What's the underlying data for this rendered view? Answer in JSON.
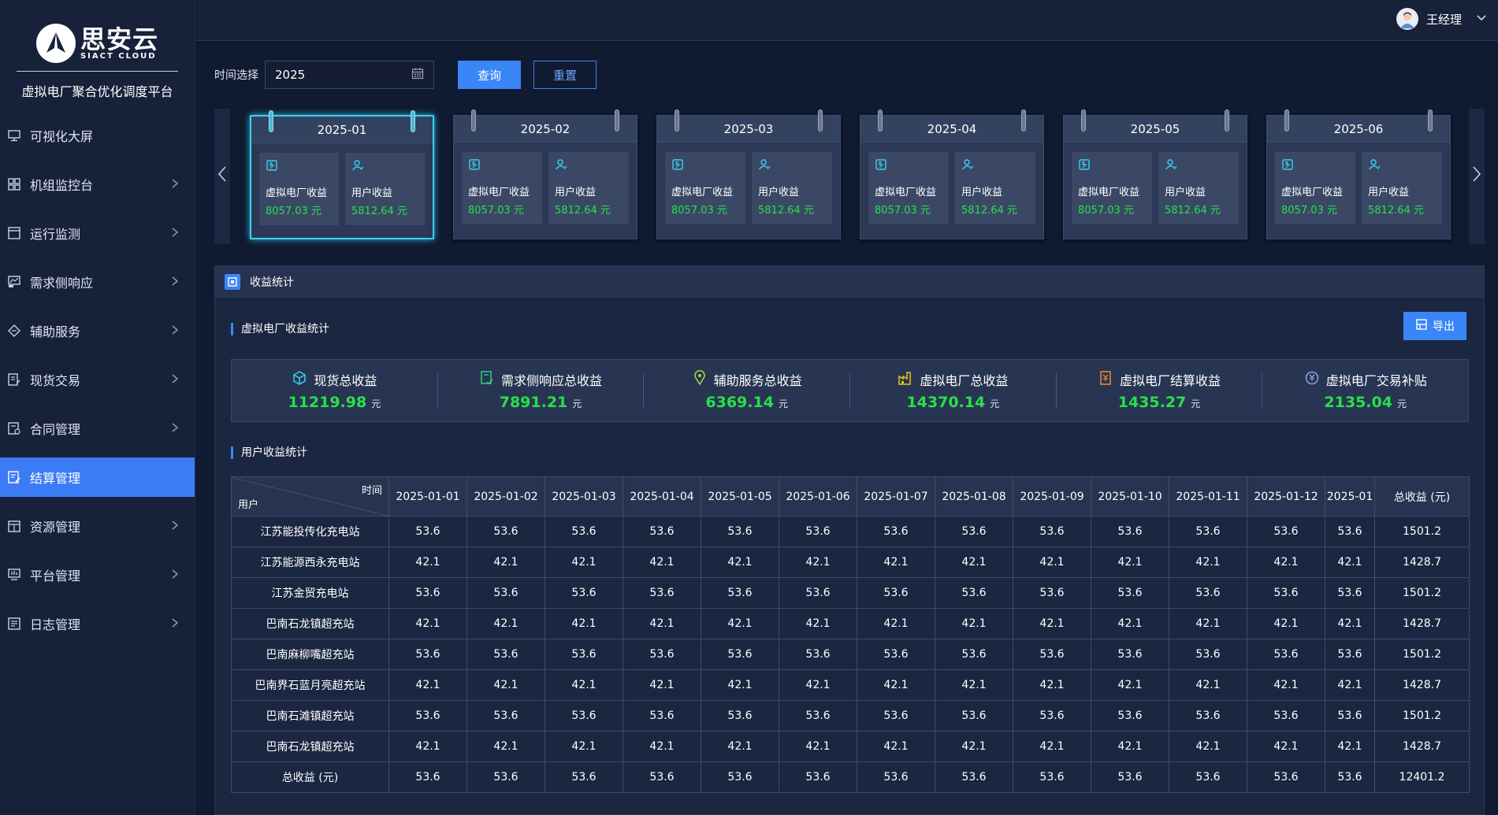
{
  "brand": {
    "logo_cn": "思安云",
    "logo_en": "SIACT CLOUD",
    "platform_name": "虚拟电厂聚合优化调度平台"
  },
  "sidebar": {
    "items": [
      {
        "label": "可视化大屏",
        "icon": "monitor-icon",
        "has_arrow": false
      },
      {
        "label": "机组监控台",
        "icon": "grid-icon",
        "has_arrow": true
      },
      {
        "label": "运行监测",
        "icon": "window-icon",
        "has_arrow": true
      },
      {
        "label": "需求侧响应",
        "icon": "demand-icon",
        "has_arrow": true
      },
      {
        "label": "辅助服务",
        "icon": "diamond-icon",
        "has_arrow": true
      },
      {
        "label": "现货交易",
        "icon": "document-edit-icon",
        "has_arrow": true
      },
      {
        "label": "合同管理",
        "icon": "contract-icon",
        "has_arrow": true
      },
      {
        "label": "结算管理",
        "icon": "settlement-icon",
        "has_arrow": false,
        "active": true
      },
      {
        "label": "资源管理",
        "icon": "resource-icon",
        "has_arrow": true
      },
      {
        "label": "平台管理",
        "icon": "platform-icon",
        "has_arrow": true
      },
      {
        "label": "日志管理",
        "icon": "log-icon",
        "has_arrow": true
      }
    ]
  },
  "topbar": {
    "user_name": "王经理"
  },
  "filter": {
    "label": "时间选择",
    "value": "2025",
    "query_label": "查询",
    "reset_label": "重置"
  },
  "months": [
    {
      "month": "2025-01",
      "vpp_label": "虚拟电厂收益",
      "vpp_value": "8057.03 元",
      "user_label": "用户收益",
      "user_value": "5812.64 元",
      "selected": true
    },
    {
      "month": "2025-02",
      "vpp_label": "虚拟电厂收益",
      "vpp_value": "8057.03 元",
      "user_label": "用户收益",
      "user_value": "5812.64 元"
    },
    {
      "month": "2025-03",
      "vpp_label": "虚拟电厂收益",
      "vpp_value": "8057.03 元",
      "user_label": "用户收益",
      "user_value": "5812.64 元"
    },
    {
      "month": "2025-04",
      "vpp_label": "虚拟电厂收益",
      "vpp_value": "8057.03 元",
      "user_label": "用户收益",
      "user_value": "5812.64 元"
    },
    {
      "month": "2025-05",
      "vpp_label": "虚拟电厂收益",
      "vpp_value": "8057.03 元",
      "user_label": "用户收益",
      "user_value": "5812.64 元"
    },
    {
      "month": "2025-06",
      "vpp_label": "虚拟电厂收益",
      "vpp_value": "8057.03 元",
      "user_label": "用户收益",
      "user_value": "5812.64 元"
    }
  ],
  "panel": {
    "title": "收益统计",
    "vpp_section": "虚拟电厂收益统计",
    "export_label": "导出",
    "user_section": "用户收益统计"
  },
  "stats": [
    {
      "label": "现货总收益",
      "value": "11219.98",
      "unit": "元",
      "icon": "cube-icon",
      "color": "#3ad0ee"
    },
    {
      "label": "需求侧响应总收益",
      "value": "7891.21",
      "unit": "元",
      "icon": "doc-check-icon",
      "color": "#2fd07a"
    },
    {
      "label": "辅助服务总收益",
      "value": "6369.14",
      "unit": "元",
      "icon": "location-icon",
      "color": "#a4e03a"
    },
    {
      "label": "虚拟电厂总收益",
      "value": "14370.14",
      "unit": "元",
      "icon": "factory-icon",
      "color": "#f0c419"
    },
    {
      "label": "虚拟电厂结算收益",
      "value": "1435.27",
      "unit": "元",
      "icon": "bill-icon",
      "color": "#f08a2a"
    },
    {
      "label": "虚拟电厂交易补贴",
      "value": "2135.04",
      "unit": "元",
      "icon": "coin-icon",
      "color": "#8aa4e6"
    }
  ],
  "table": {
    "corner_time": "时间",
    "corner_user": "用户",
    "dates": [
      "2025-01-01",
      "2025-01-02",
      "2025-01-03",
      "2025-01-04",
      "2025-01-05",
      "2025-01-06",
      "2025-01-07",
      "2025-01-08",
      "2025-01-09",
      "2025-01-10",
      "2025-01-11",
      "2025-01-12",
      "2025-01"
    ],
    "total_header": "总收益 (元)",
    "rows": [
      {
        "name": "江苏能投传化充电站",
        "values": [
          "53.6",
          "53.6",
          "53.6",
          "53.6",
          "53.6",
          "53.6",
          "53.6",
          "53.6",
          "53.6",
          "53.6",
          "53.6",
          "53.6",
          "53.6"
        ],
        "total": "1501.2"
      },
      {
        "name": "江苏能源西永充电站",
        "values": [
          "42.1",
          "42.1",
          "42.1",
          "42.1",
          "42.1",
          "42.1",
          "42.1",
          "42.1",
          "42.1",
          "42.1",
          "42.1",
          "42.1",
          "42.1"
        ],
        "total": "1428.7"
      },
      {
        "name": "江苏金贸充电站",
        "values": [
          "53.6",
          "53.6",
          "53.6",
          "53.6",
          "53.6",
          "53.6",
          "53.6",
          "53.6",
          "53.6",
          "53.6",
          "53.6",
          "53.6",
          "53.6"
        ],
        "total": "1501.2"
      },
      {
        "name": "巴南石龙镇超充站",
        "values": [
          "42.1",
          "42.1",
          "42.1",
          "42.1",
          "42.1",
          "42.1",
          "42.1",
          "42.1",
          "42.1",
          "42.1",
          "42.1",
          "42.1",
          "42.1"
        ],
        "total": "1428.7"
      },
      {
        "name": "巴南麻柳嘴超充站",
        "values": [
          "53.6",
          "53.6",
          "53.6",
          "53.6",
          "53.6",
          "53.6",
          "53.6",
          "53.6",
          "53.6",
          "53.6",
          "53.6",
          "53.6",
          "53.6"
        ],
        "total": "1501.2"
      },
      {
        "name": "巴南界石蓝月亮超充站",
        "values": [
          "42.1",
          "42.1",
          "42.1",
          "42.1",
          "42.1",
          "42.1",
          "42.1",
          "42.1",
          "42.1",
          "42.1",
          "42.1",
          "42.1",
          "42.1"
        ],
        "total": "1428.7"
      },
      {
        "name": "巴南石滩镇超充站",
        "values": [
          "53.6",
          "53.6",
          "53.6",
          "53.6",
          "53.6",
          "53.6",
          "53.6",
          "53.6",
          "53.6",
          "53.6",
          "53.6",
          "53.6",
          "53.6"
        ],
        "total": "1501.2"
      },
      {
        "name": "巴南石龙镇超充站",
        "values": [
          "42.1",
          "42.1",
          "42.1",
          "42.1",
          "42.1",
          "42.1",
          "42.1",
          "42.1",
          "42.1",
          "42.1",
          "42.1",
          "42.1",
          "42.1"
        ],
        "total": "1428.7"
      },
      {
        "name": "总收益 (元)",
        "values": [
          "53.6",
          "53.6",
          "53.6",
          "53.6",
          "53.6",
          "53.6",
          "53.6",
          "53.6",
          "53.6",
          "53.6",
          "53.6",
          "53.6",
          "53.6"
        ],
        "total": "12401.2"
      }
    ]
  },
  "colors": {
    "accent": "#3b86f6",
    "positive_value": "#28e04a",
    "selected_card_border": "#3ad0ee"
  }
}
